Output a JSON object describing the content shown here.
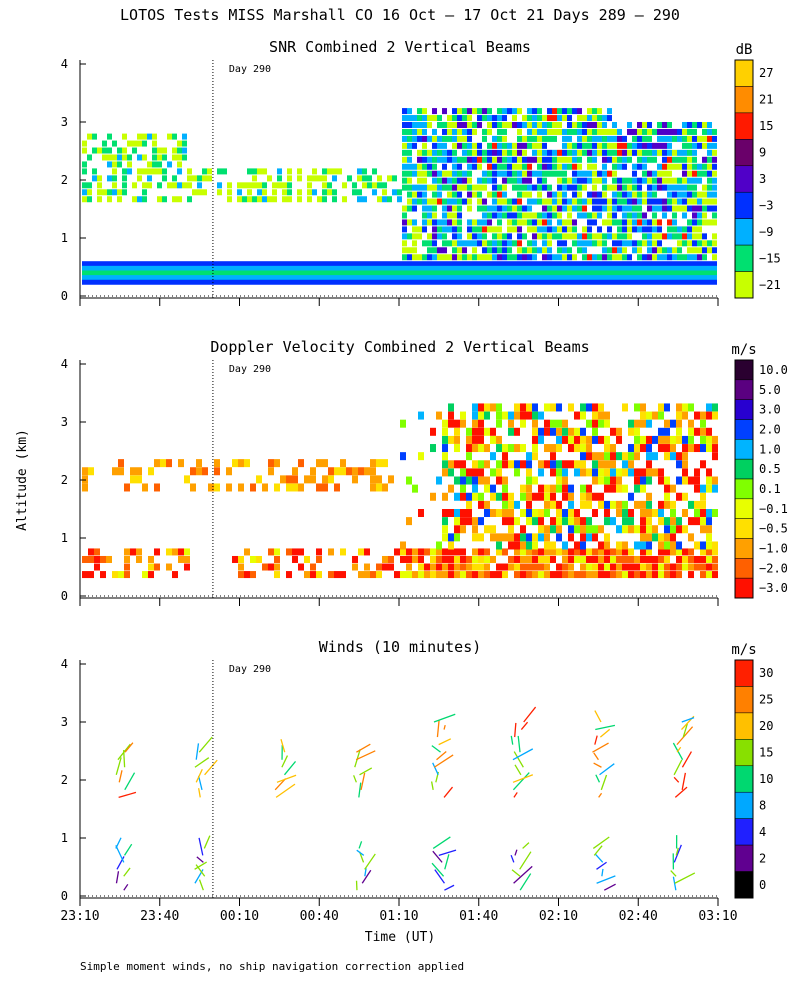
{
  "figure": {
    "title": "LOTOS Tests MISS Marshall CO  16 Oct — 17 Oct 21 Days 289 — 290",
    "ylabel": "Altitude (km)",
    "xlabel": "Time (UT)",
    "footnote": "Simple moment winds, no ship navigation correction applied",
    "day_marker_label": "Day 290"
  },
  "chart_data": [
    {
      "type": "heatmap",
      "title": "SNR Combined 2 Vertical Beams",
      "ylim": [
        0,
        4
      ],
      "yticks": [
        "0",
        "1",
        "2",
        "3",
        "4"
      ],
      "xlim_minutes": [
        0,
        240
      ],
      "colorbar": {
        "unit": "dB",
        "labels": [
          "27",
          "21",
          "15",
          "9",
          "3",
          "−3",
          "−9",
          "−15",
          "−21"
        ],
        "colors": [
          "#ffd000",
          "#ff8c00",
          "#ff1a00",
          "#6a006a",
          "#5000c8",
          "#0030ff",
          "#00b0ff",
          "#00e070",
          "#c8ff00"
        ]
      }
    },
    {
      "type": "heatmap",
      "title": "Doppler Velocity Combined 2 Vertical Beams",
      "ylim": [
        0,
        4
      ],
      "yticks": [
        "0",
        "1",
        "2",
        "3",
        "4"
      ],
      "xlim_minutes": [
        0,
        240
      ],
      "colorbar": {
        "unit": "m/s",
        "labels": [
          "10.0",
          "5.0",
          "3.0",
          "2.0",
          "1.0",
          "0.5",
          "0.1",
          "−0.1",
          "−0.5",
          "−1.0",
          "−2.0",
          "−3.0"
        ],
        "colors": [
          "#2a0030",
          "#5a0080",
          "#2800d0",
          "#0040ff",
          "#00b4ff",
          "#00d060",
          "#80ff00",
          "#e8ff00",
          "#ffe000",
          "#ffa000",
          "#ff6000",
          "#ff1000"
        ]
      }
    },
    {
      "type": "scatter",
      "title": "Winds (10 minutes)",
      "ylim": [
        0,
        4
      ],
      "yticks": [
        "0",
        "1",
        "2",
        "3",
        "4"
      ],
      "xlim_minutes": [
        0,
        240
      ],
      "colorbar": {
        "unit": "m/s",
        "labels": [
          "30",
          "25",
          "20",
          "15",
          "10",
          "8",
          "4",
          "2",
          "0"
        ],
        "colors": [
          "#ff2000",
          "#ff8000",
          "#ffc000",
          "#88e000",
          "#00d870",
          "#00a8ff",
          "#2020ff",
          "#600090",
          "#000000"
        ]
      },
      "profile_times_min": [
        15,
        45,
        75,
        105,
        135,
        165,
        195,
        225
      ]
    }
  ],
  "time_axis": {
    "ticks": [
      "23:10",
      "23:40",
      "00:10",
      "00:40",
      "01:10",
      "01:40",
      "02:10",
      "02:40",
      "03:10"
    ],
    "day_boundary_minutes": 50
  }
}
